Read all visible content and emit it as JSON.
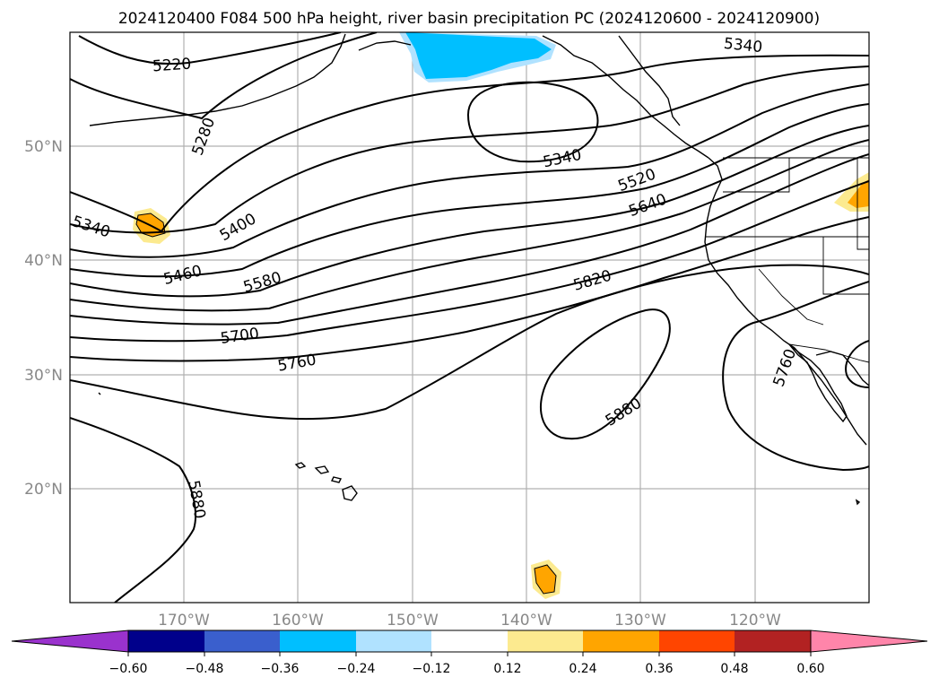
{
  "title": "2024120400 F084 500 hPa height, river basin precipitation PC (2024120600 - 2024120900)",
  "map": {
    "lon_range": [
      -180,
      -110
    ],
    "lat_range": [
      10,
      60
    ],
    "lon_ticks": [
      {
        "lon": -170,
        "label": "170°W"
      },
      {
        "lon": -160,
        "label": "160°W"
      },
      {
        "lon": -150,
        "label": "150°W"
      },
      {
        "lon": -140,
        "label": "140°W"
      },
      {
        "lon": -130,
        "label": "130°W"
      },
      {
        "lon": -120,
        "label": "120°W"
      }
    ],
    "lat_ticks": [
      {
        "lat": 50,
        "label": "50°N"
      },
      {
        "lat": 40,
        "label": "40°N"
      },
      {
        "lat": 30,
        "label": "30°N"
      },
      {
        "lat": 20,
        "label": "20°N"
      }
    ],
    "gridlines": true,
    "contour_levels": [
      "5220",
      "5280",
      "5340",
      "5400",
      "5460",
      "5520",
      "5580",
      "5640",
      "5700",
      "5760",
      "5820",
      "5880"
    ],
    "contour_labels": [
      {
        "text": "5220"
      },
      {
        "text": "5280"
      },
      {
        "text": "5340"
      },
      {
        "text": "5340"
      },
      {
        "text": "5340"
      },
      {
        "text": "5400"
      },
      {
        "text": "5460"
      },
      {
        "text": "5520"
      },
      {
        "text": "5580"
      },
      {
        "text": "5640"
      },
      {
        "text": "5700"
      },
      {
        "text": "5760"
      },
      {
        "text": "5820"
      },
      {
        "text": "5880"
      },
      {
        "text": "5880"
      },
      {
        "text": "5760"
      }
    ]
  },
  "colorbar": {
    "ticks": [
      "−0.60",
      "−0.48",
      "−0.36",
      "−0.24",
      "−0.12",
      "0.12",
      "0.24",
      "0.36",
      "0.48",
      "0.60"
    ],
    "colors": [
      "#9a32cd",
      "#00008b",
      "#3a5fcd",
      "#00bfff",
      "#b0e2ff",
      "#ffffff",
      "#fcea8f",
      "#ffa500",
      "#ff4500",
      "#b22222",
      "#ff85aa"
    ],
    "extend": "both"
  }
}
